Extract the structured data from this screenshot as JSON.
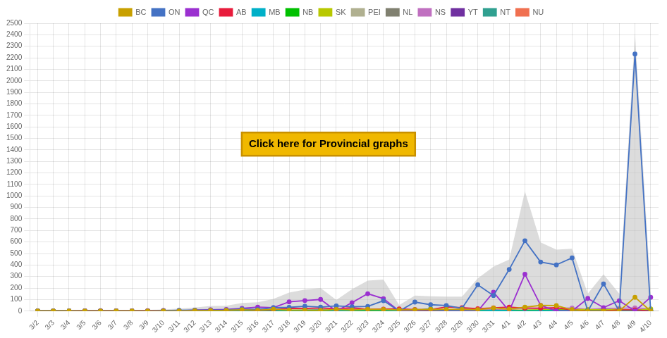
{
  "chart_data": {
    "type": "line",
    "categories": [
      "3/2",
      "3/3",
      "3/4",
      "3/5",
      "3/6",
      "3/7",
      "3/8",
      "3/9",
      "3/10",
      "3/11",
      "3/12",
      "3/13",
      "3/14",
      "3/15",
      "3/16",
      "3/17",
      "3/18",
      "3/19",
      "3/20",
      "3/21",
      "3/22",
      "3/23",
      "3/24",
      "3/25",
      "3/26",
      "3/27",
      "3/28",
      "3/29",
      "3/30",
      "3/31",
      "4/1",
      "4/2",
      "4/3",
      "4/4",
      "4/5",
      "4/6",
      "4/7",
      "4/8",
      "4/9",
      "4/10"
    ],
    "series": [
      {
        "type": "area",
        "color": "#c0c0c0",
        "values": [
          2,
          2,
          2,
          5,
          9,
          5,
          4,
          10,
          14,
          22,
          31,
          44,
          46,
          71,
          77,
          106,
          161,
          186,
          200,
          97,
          190,
          265,
          273,
          52,
          135,
          128,
          125,
          126,
          285,
          385,
          448,
          1040,
          597,
          534,
          542,
          151,
          319,
          152,
          2415,
          175
        ]
      },
      {
        "name": "BC",
        "color": "#c8a000",
        "values": [
          1,
          0,
          1,
          0,
          1,
          0,
          0,
          1,
          1,
          1,
          4,
          5,
          6,
          11,
          7,
          16,
          9,
          9,
          6,
          14,
          10,
          16,
          14,
          10,
          12,
          16,
          15,
          14,
          13,
          27,
          18,
          35,
          49,
          48,
          10,
          0,
          0,
          0,
          120,
          0
        ]
      },
      {
        "name": "ON",
        "color": "#4472c4",
        "values": [
          0,
          0,
          0,
          0,
          2,
          1,
          1,
          1,
          3,
          7,
          8,
          8,
          10,
          17,
          15,
          29,
          32,
          42,
          35,
          45,
          37,
          41,
          90,
          0,
          78,
          55,
          48,
          24,
          228,
          135,
          362,
          611,
          426,
          401,
          462,
          0,
          236,
          0,
          2233,
          0
        ]
      },
      {
        "name": "QC",
        "color": "#9b30d0",
        "values": [
          1,
          1,
          1,
          2,
          1,
          1,
          0,
          2,
          4,
          4,
          7,
          11,
          15,
          24,
          35,
          30,
          80,
          91,
          101,
          0,
          73,
          151,
          108,
          0,
          0,
          0,
          0,
          0,
          0,
          164,
          0,
          320,
          50,
          0,
          0,
          110,
          30,
          90,
          0,
          120
        ]
      },
      {
        "name": "AB",
        "color": "#e81c3c",
        "values": [
          0,
          1,
          0,
          2,
          3,
          2,
          2,
          3,
          5,
          4,
          6,
          10,
          7,
          10,
          6,
          12,
          23,
          22,
          27,
          19,
          30,
          15,
          17,
          19,
          13,
          13,
          36,
          30,
          20,
          28,
          35,
          25,
          25,
          29,
          10,
          0,
          0,
          10,
          10,
          0
        ]
      },
      {
        "name": "MB",
        "color": "#00b0c8",
        "values": [
          0,
          0,
          0,
          0,
          1,
          0,
          0,
          0,
          0,
          0,
          1,
          4,
          0,
          0,
          4,
          6,
          5,
          6,
          9,
          3,
          5,
          11,
          12,
          0,
          5,
          20,
          6,
          5,
          2,
          6,
          4,
          1,
          3,
          4,
          3,
          4,
          4,
          0,
          5,
          4
        ]
      },
      {
        "name": "NB",
        "color": "#00c000",
        "values": [
          0,
          0,
          0,
          0,
          0,
          1,
          1,
          1,
          0,
          2,
          0,
          1,
          1,
          3,
          2,
          2,
          1,
          2,
          1,
          1,
          4,
          4,
          3,
          4,
          5,
          2,
          1,
          2,
          0,
          3,
          5,
          4,
          3,
          8,
          5,
          3,
          3,
          4,
          2,
          4
        ]
      },
      {
        "name": "SK",
        "color": "#b8c800",
        "values": [
          0,
          0,
          0,
          1,
          1,
          0,
          0,
          1,
          0,
          0,
          2,
          3,
          2,
          2,
          2,
          2,
          3,
          5,
          3,
          3,
          2,
          3,
          11,
          0,
          3,
          7,
          1,
          15,
          3,
          5,
          9,
          8,
          11,
          13,
          13,
          13,
          10,
          14,
          5,
          19
        ]
      },
      {
        "name": "PEI",
        "color": "#b0b090",
        "values": [
          0,
          0,
          0,
          0,
          0,
          0,
          0,
          0,
          0,
          0,
          0,
          0,
          0,
          2,
          0,
          1,
          1,
          0,
          3,
          1,
          1,
          2,
          0,
          3,
          0,
          0,
          0,
          7,
          0,
          1,
          0,
          1,
          1,
          0,
          1,
          0,
          0,
          0,
          2,
          0
        ]
      },
      {
        "name": "NL",
        "color": "#808070",
        "values": [
          0,
          0,
          0,
          0,
          0,
          0,
          0,
          0,
          0,
          2,
          1,
          1,
          2,
          1,
          4,
          4,
          4,
          6,
          10,
          5,
          4,
          8,
          6,
          9,
          13,
          10,
          9,
          17,
          12,
          5,
          2,
          7,
          9,
          7,
          11,
          7,
          14,
          10,
          10,
          10
        ]
      },
      {
        "name": "NS",
        "color": "#c070c0",
        "values": [
          0,
          0,
          0,
          0,
          0,
          0,
          0,
          1,
          0,
          1,
          2,
          1,
          3,
          1,
          2,
          4,
          1,
          3,
          4,
          6,
          24,
          14,
          11,
          6,
          6,
          5,
          9,
          11,
          7,
          11,
          12,
          28,
          20,
          24,
          27,
          14,
          22,
          24,
          28,
          18
        ]
      },
      {
        "name": "YT",
        "color": "#7030a0",
        "values": [
          0,
          0,
          0,
          0,
          0,
          0,
          0,
          0,
          0,
          1,
          0,
          0,
          0,
          0,
          0,
          0,
          2,
          0,
          1,
          0,
          0,
          0,
          0,
          1,
          0,
          0,
          0,
          1,
          0,
          0,
          1,
          0,
          0,
          0,
          0,
          0,
          0,
          0,
          0,
          0
        ]
      },
      {
        "name": "NT",
        "color": "#30a090",
        "values": [
          0,
          0,
          0,
          0,
          0,
          0,
          0,
          0,
          1,
          0,
          0,
          0,
          0,
          0,
          0,
          0,
          0,
          0,
          0,
          0,
          0,
          0,
          1,
          0,
          0,
          0,
          0,
          0,
          0,
          0,
          0,
          0,
          0,
          0,
          0,
          0,
          0,
          0,
          0,
          0
        ]
      },
      {
        "name": "NU",
        "color": "#f07050",
        "values": [
          0,
          0,
          0,
          0,
          0,
          0,
          0,
          0,
          0,
          0,
          0,
          0,
          0,
          0,
          0,
          0,
          0,
          0,
          0,
          0,
          0,
          0,
          0,
          0,
          0,
          0,
          0,
          0,
          0,
          0,
          0,
          0,
          0,
          0,
          0,
          0,
          0,
          0,
          0,
          0
        ]
      }
    ],
    "marker": "circle",
    "ylim": [
      0,
      2500
    ],
    "yticks": [
      0,
      100,
      200,
      300,
      400,
      500,
      600,
      700,
      800,
      900,
      1000,
      1100,
      1200,
      1300,
      1400,
      1500,
      1600,
      1700,
      1800,
      1900,
      2000,
      2100,
      2200,
      2300,
      2400,
      2500
    ],
    "grid": true,
    "legend": "top",
    "annotations": [
      {
        "text": "Click here for Provincial graphs",
        "color": "#f0b800"
      }
    ]
  }
}
